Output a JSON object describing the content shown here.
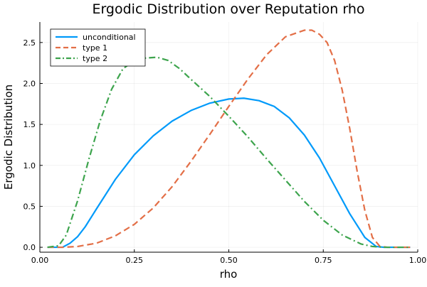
{
  "chart_data": {
    "type": "line",
    "title": "Ergodic Distribution over Reputation rho",
    "xlabel": "rho",
    "ylabel": "Ergodic Distribution",
    "xlim": [
      0.0,
      1.0
    ],
    "ylim": [
      -0.06,
      2.75
    ],
    "xticks": [
      0.0,
      0.25,
      0.5,
      0.75,
      1.0
    ],
    "xtick_labels": [
      "0.00",
      "0.25",
      "0.50",
      "0.75",
      "1.00"
    ],
    "yticks": [
      0.0,
      0.5,
      1.0,
      1.5,
      2.0,
      2.5
    ],
    "ytick_labels": [
      "0.0",
      "0.5",
      "1.0",
      "1.5",
      "2.0",
      "2.5"
    ],
    "grid": true,
    "legend_position": "top-left",
    "series": [
      {
        "name": "unconditional",
        "color": "#009AFA",
        "dash": "solid",
        "x": [
          0.02,
          0.06,
          0.08,
          0.1,
          0.12,
          0.15,
          0.2,
          0.25,
          0.3,
          0.35,
          0.4,
          0.45,
          0.5,
          0.54,
          0.58,
          0.62,
          0.66,
          0.7,
          0.74,
          0.78,
          0.82,
          0.86,
          0.89,
          0.91,
          0.95,
          0.98
        ],
        "y": [
          0.0,
          0.0,
          0.05,
          0.13,
          0.25,
          0.47,
          0.83,
          1.13,
          1.36,
          1.54,
          1.67,
          1.76,
          1.81,
          1.82,
          1.79,
          1.72,
          1.58,
          1.37,
          1.09,
          0.75,
          0.41,
          0.12,
          0.01,
          0.0,
          0.0,
          0.0
        ]
      },
      {
        "name": "type 1",
        "color": "#E36F47",
        "dash": "dashed",
        "x": [
          0.02,
          0.06,
          0.1,
          0.15,
          0.2,
          0.25,
          0.3,
          0.35,
          0.4,
          0.45,
          0.5,
          0.55,
          0.6,
          0.65,
          0.7,
          0.72,
          0.74,
          0.76,
          0.78,
          0.8,
          0.82,
          0.84,
          0.86,
          0.88,
          0.9,
          0.92,
          0.95,
          0.98
        ],
        "y": [
          0.0,
          0.0,
          0.01,
          0.05,
          0.14,
          0.28,
          0.48,
          0.74,
          1.05,
          1.38,
          1.72,
          2.05,
          2.35,
          2.57,
          2.65,
          2.65,
          2.6,
          2.5,
          2.28,
          1.92,
          1.45,
          0.92,
          0.45,
          0.12,
          0.01,
          0.0,
          0.0,
          0.0
        ]
      },
      {
        "name": "type 2",
        "color": "#3DA44D",
        "dash": "dashdot",
        "x": [
          0.02,
          0.05,
          0.07,
          0.1,
          0.13,
          0.16,
          0.19,
          0.22,
          0.25,
          0.28,
          0.31,
          0.34,
          0.37,
          0.4,
          0.45,
          0.5,
          0.55,
          0.6,
          0.65,
          0.7,
          0.75,
          0.8,
          0.85,
          0.88,
          0.91,
          0.95,
          0.98
        ],
        "y": [
          0.0,
          0.02,
          0.15,
          0.57,
          1.08,
          1.55,
          1.93,
          2.18,
          2.28,
          2.31,
          2.32,
          2.28,
          2.18,
          2.05,
          1.84,
          1.6,
          1.35,
          1.08,
          0.82,
          0.56,
          0.33,
          0.15,
          0.04,
          0.01,
          0.0,
          0.0,
          0.0
        ]
      }
    ]
  }
}
